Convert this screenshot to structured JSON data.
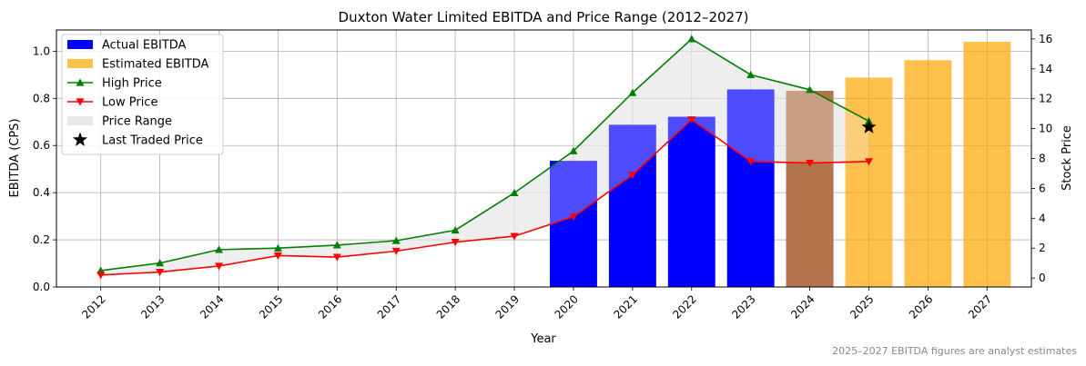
{
  "chart_data": {
    "type": "bar+line",
    "title": "Duxton Water Limited EBITDA and Price Range (2012–2027)",
    "xlabel": "Year",
    "ylabel_left": "EBITDA (CPS)",
    "ylabel_right": "Stock Price",
    "categories": [
      "2012",
      "2013",
      "2014",
      "2015",
      "2016",
      "2017",
      "2018",
      "2019",
      "2020",
      "2021",
      "2022",
      "2023",
      "2024",
      "2025",
      "2026",
      "2027"
    ],
    "ylim_left": [
      0,
      1.09
    ],
    "ylim_right": [
      -0.6,
      16.6
    ],
    "yticks_left": [
      0.0,
      0.2,
      0.4,
      0.6,
      0.8,
      1.0
    ],
    "yticks_left_labels": [
      "0.0",
      "0.2",
      "0.4",
      "0.6",
      "0.8",
      "1.0"
    ],
    "yticks_right": [
      0,
      2,
      4,
      6,
      8,
      10,
      12,
      14,
      16
    ],
    "yticks_right_labels": [
      "0",
      "2",
      "4",
      "6",
      "8",
      "10",
      "12",
      "14",
      "16"
    ],
    "grid": true,
    "legend_position": "top-left",
    "series": [
      {
        "name": "Actual EBITDA",
        "kind": "bar",
        "axis": "left",
        "color": "#0000ff",
        "values": [
          null,
          null,
          null,
          null,
          null,
          null,
          null,
          null,
          0.535,
          0.688,
          0.722,
          0.838,
          0.832,
          null,
          null,
          null
        ]
      },
      {
        "name": "Estimated EBITDA",
        "kind": "bar",
        "axis": "left",
        "color": "#ffa500",
        "values": [
          null,
          null,
          null,
          null,
          null,
          null,
          null,
          null,
          null,
          null,
          null,
          null,
          0.832,
          0.888,
          0.962,
          1.04
        ]
      },
      {
        "name": "High Price",
        "kind": "line",
        "axis": "right",
        "color": "#008000",
        "marker": "triangle-up",
        "values": [
          0.5,
          1.0,
          1.9,
          2.0,
          2.2,
          2.5,
          3.2,
          5.7,
          8.5,
          12.4,
          16.0,
          13.6,
          12.6,
          10.5,
          null,
          null
        ]
      },
      {
        "name": "Low Price",
        "kind": "line",
        "axis": "right",
        "color": "#ff0000",
        "marker": "triangle-down",
        "values": [
          0.2,
          0.4,
          0.8,
          1.5,
          1.4,
          1.8,
          2.4,
          2.8,
          4.1,
          6.9,
          10.6,
          7.8,
          7.7,
          7.8,
          null,
          null
        ]
      },
      {
        "name": "Price Range",
        "kind": "area",
        "axis": "right",
        "color": "#d3d3d3"
      },
      {
        "name": "Last Traded Price",
        "kind": "scatter",
        "axis": "right",
        "color": "#000000",
        "marker": "star",
        "x": "2025",
        "value": 10.1
      }
    ]
  },
  "footnote": "2025–2027 EBITDA figures are analyst estimates"
}
